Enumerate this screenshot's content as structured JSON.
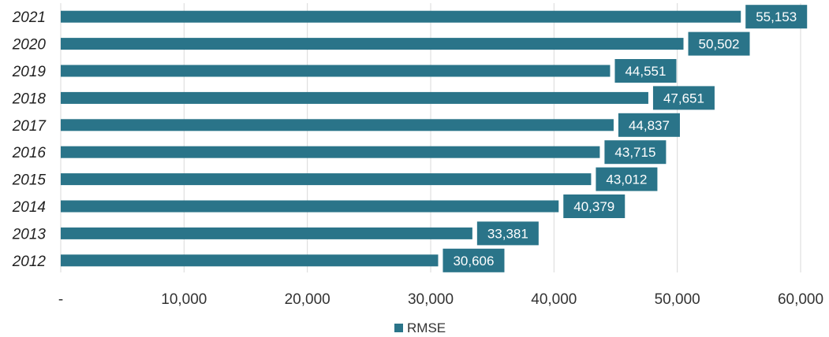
{
  "chart_data": {
    "type": "bar",
    "orientation": "horizontal",
    "categories": [
      "2021",
      "2020",
      "2019",
      "2018",
      "2017",
      "2016",
      "2015",
      "2014",
      "2013",
      "2012"
    ],
    "series": [
      {
        "name": "RMSE",
        "values": [
          55153,
          50502,
          44551,
          47651,
          44837,
          43715,
          43012,
          40379,
          33381,
          30606
        ]
      }
    ],
    "data_labels": [
      "55,153",
      "50,502",
      "44,551",
      "47,651",
      "44,837",
      "43,715",
      "43,012",
      "40,379",
      "33,381",
      "30,606"
    ],
    "x_ticks": [
      "-",
      "10,000",
      "20,000",
      "30,000",
      "40,000",
      "50,000",
      "60,000"
    ],
    "x_tick_values": [
      0,
      10000,
      20000,
      30000,
      40000,
      50000,
      60000
    ],
    "xlim": [
      0,
      60000
    ],
    "grid": "vertical",
    "legend": "bottom-center",
    "colors": {
      "bar": "#2a7489",
      "grid": "#d9d9d9",
      "text": "#222222"
    }
  }
}
